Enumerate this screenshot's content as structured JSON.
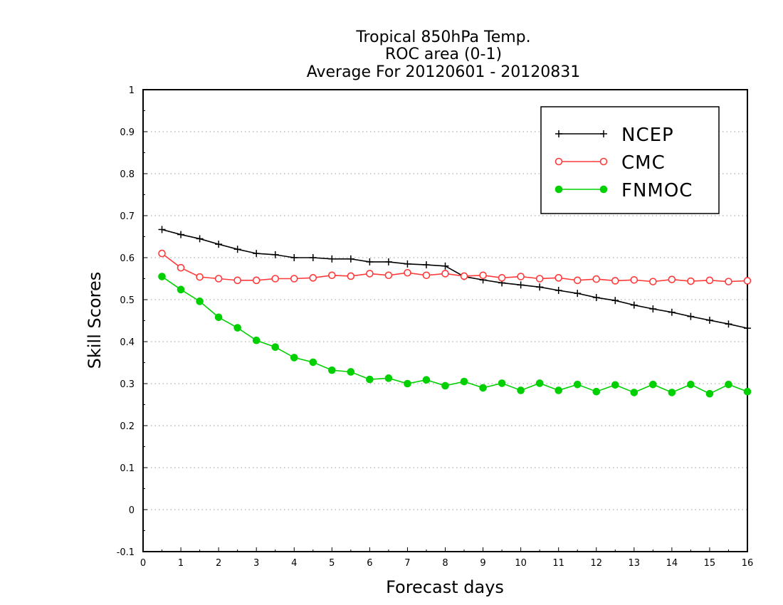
{
  "chart_data": {
    "type": "line",
    "title_lines": [
      "Tropical 850hPa Temp.",
      "ROC area (0-1)",
      "Average For 20120601 - 20120831"
    ],
    "xlabel": "Forecast days",
    "ylabel": "Skill Scores",
    "xlim": [
      0,
      16
    ],
    "ylim": [
      -0.1,
      1
    ],
    "xticks": [
      "0",
      "1",
      "2",
      "3",
      "4",
      "5",
      "6",
      "7",
      "8",
      "9",
      "10",
      "11",
      "12",
      "13",
      "14",
      "15",
      "16"
    ],
    "yticks": [
      "-0.1",
      "0",
      "0.1",
      "0.2",
      "0.3",
      "0.4",
      "0.5",
      "0.6",
      "0.7",
      "0.8",
      "0.9",
      "1"
    ],
    "grid": "dotted horizontal",
    "legend_position": "top-right",
    "x": [
      0.5,
      1,
      1.5,
      2,
      2.5,
      3,
      3.5,
      4,
      4.5,
      5,
      5.5,
      6,
      6.5,
      7,
      7.5,
      8,
      8.5,
      9,
      9.5,
      10,
      10.5,
      11,
      11.5,
      12,
      12.5,
      13,
      13.5,
      14,
      14.5,
      15,
      15.5,
      16
    ],
    "series": [
      {
        "name": "NCEP",
        "color": "#000000",
        "marker": "plus",
        "values": [
          0.667,
          0.655,
          0.645,
          0.632,
          0.62,
          0.61,
          0.607,
          0.6,
          0.6,
          0.597,
          0.597,
          0.59,
          0.59,
          0.585,
          0.583,
          0.58,
          0.555,
          0.547,
          0.54,
          0.535,
          0.53,
          0.522,
          0.515,
          0.505,
          0.498,
          0.487,
          0.478,
          0.47,
          0.46,
          0.451,
          0.442,
          0.432
        ]
      },
      {
        "name": "CMC",
        "color": "#ff3a3a",
        "marker": "open-circle",
        "values": [
          0.61,
          0.576,
          0.554,
          0.55,
          0.546,
          0.546,
          0.55,
          0.55,
          0.552,
          0.558,
          0.556,
          0.562,
          0.558,
          0.564,
          0.558,
          0.562,
          0.556,
          0.558,
          0.552,
          0.555,
          0.55,
          0.552,
          0.546,
          0.549,
          0.545,
          0.547,
          0.543,
          0.548,
          0.544,
          0.546,
          0.543,
          0.545
        ]
      },
      {
        "name": "FNMOC",
        "color": "#00d000",
        "marker": "filled-circle",
        "values": [
          0.555,
          0.524,
          0.496,
          0.458,
          0.433,
          0.403,
          0.387,
          0.362,
          0.351,
          0.332,
          0.328,
          0.31,
          0.313,
          0.3,
          0.309,
          0.295,
          0.305,
          0.29,
          0.301,
          0.284,
          0.301,
          0.284,
          0.298,
          0.281,
          0.297,
          0.279,
          0.298,
          0.279,
          0.298,
          0.276,
          0.298,
          0.281
        ]
      }
    ]
  }
}
